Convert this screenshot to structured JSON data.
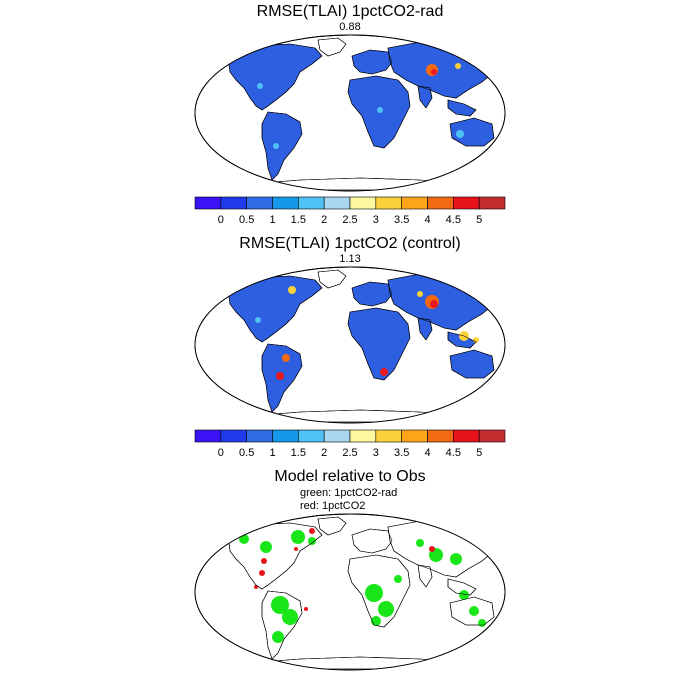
{
  "panels": [
    {
      "title": "RMSE(TLAI) 1pctCO2-rad",
      "value": "0.88",
      "colorbar": {
        "colors": [
          "#3a12f5",
          "#1f3ae8",
          "#2f6ee6",
          "#1499e8",
          "#4ec2f2",
          "#a9d8ee",
          "#fcf7a0",
          "#fcd23c",
          "#fca51b",
          "#f36a13",
          "#e8141c",
          "#c52c30"
        ],
        "labels": [
          "0",
          "0.5",
          "1",
          "1.5",
          "2",
          "2.5",
          "3",
          "3.5",
          "4",
          "4.5",
          "5"
        ]
      },
      "land_color": "#2d5fe0",
      "hotspot_colors": [
        "#f46a10",
        "#e81a20",
        "#fcd23c",
        "#4ec2f2"
      ]
    },
    {
      "title": "RMSE(TLAI) 1pctCO2 (control)",
      "value": "1.13",
      "colorbar": {
        "colors": [
          "#3a12f5",
          "#1f3ae8",
          "#2f6ee6",
          "#1499e8",
          "#4ec2f2",
          "#a9d8ee",
          "#fcf7a0",
          "#fcd23c",
          "#fca51b",
          "#f36a13",
          "#e8141c",
          "#c52c30"
        ],
        "labels": [
          "0",
          "0.5",
          "1",
          "1.5",
          "2",
          "2.5",
          "3",
          "3.5",
          "4",
          "4.5",
          "5"
        ]
      },
      "land_color": "#2d5fe0",
      "hotspot_colors": [
        "#f46a10",
        "#e81a20",
        "#fcd23c",
        "#4ec2f2"
      ]
    },
    {
      "title": "Model relative to Obs",
      "legend_green": "green: 1pctCO2-rad",
      "legend_red": "red: 1pctCO2",
      "green_color": "#19e619",
      "red_color": "#e8141c"
    }
  ]
}
